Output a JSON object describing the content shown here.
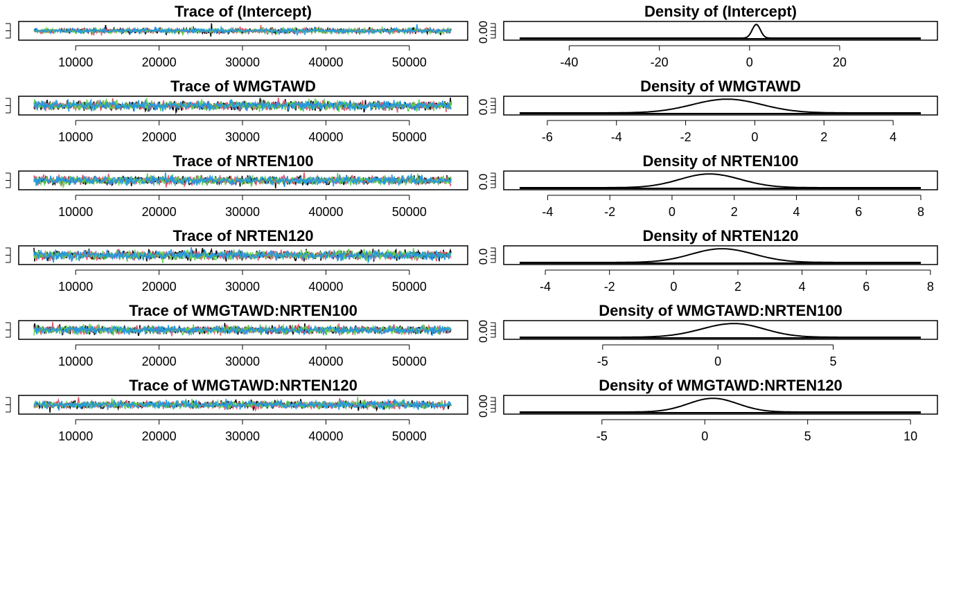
{
  "chart_data": [
    {
      "type": "line",
      "panel": "trace",
      "title": "Trace of (Intercept)",
      "xlim": [
        5000,
        55000
      ],
      "xticks": [
        10000,
        20000,
        30000,
        40000,
        50000
      ],
      "yticks": [],
      "y_tick_label": "",
      "ylim": [
        -6,
        6
      ],
      "center": 0,
      "spread": 0.8,
      "spikes": 2.2,
      "series": [
        {
          "color": "#000000"
        },
        {
          "color": "#DF536B"
        },
        {
          "color": "#61D04F"
        },
        {
          "color": "#2297E6"
        }
      ]
    },
    {
      "type": "line",
      "panel": "density",
      "title": "Density of (Intercept)",
      "xlim": [
        -51,
        38
      ],
      "xticks": [
        -40,
        -20,
        0,
        20
      ],
      "y_tick_label": "0.00",
      "peak_x": 1.5,
      "sd_left": 0.9,
      "sd_right": 0.9,
      "ylim_max": 0.53
    },
    {
      "type": "line",
      "panel": "trace",
      "title": "Trace of WMGTAWD",
      "xlim": [
        5000,
        55000
      ],
      "xticks": [
        10000,
        20000,
        30000,
        40000,
        50000
      ],
      "y_tick_label": "",
      "ylim": [
        -6,
        6
      ],
      "center": 0,
      "spread": 1.6,
      "spikes": 1.5,
      "series": [
        {
          "color": "#000000"
        },
        {
          "color": "#DF536B"
        },
        {
          "color": "#61D04F"
        },
        {
          "color": "#2297E6"
        }
      ]
    },
    {
      "type": "line",
      "panel": "density",
      "title": "Density of WMGTAWD",
      "xlim": [
        -6.8,
        4.8
      ],
      "xticks": [
        -6,
        -4,
        -2,
        0,
        2,
        4
      ],
      "y_tick_label": "0.0",
      "peak_x": -0.8,
      "sd_left": 1.0,
      "sd_right": 1.0,
      "ylim_max": 0.53
    },
    {
      "type": "line",
      "panel": "trace",
      "title": "Trace of NRTEN100",
      "xlim": [
        5000,
        55000
      ],
      "xticks": [
        10000,
        20000,
        30000,
        40000,
        50000
      ],
      "y_tick_label": "",
      "ylim": [
        -6,
        6
      ],
      "center": 0,
      "spread": 1.5,
      "spikes": 1.5,
      "series": [
        {
          "color": "#000000"
        },
        {
          "color": "#DF536B"
        },
        {
          "color": "#61D04F"
        },
        {
          "color": "#2297E6"
        }
      ]
    },
    {
      "type": "line",
      "panel": "density",
      "title": "Density of NRTEN100",
      "xlim": [
        -4.9,
        8.0
      ],
      "xticks": [
        -4,
        -2,
        0,
        2,
        4,
        6,
        8
      ],
      "y_tick_label": "0.0",
      "peak_x": 1.2,
      "sd_left": 0.95,
      "sd_right": 1.0,
      "ylim_max": 0.53
    },
    {
      "type": "line",
      "panel": "trace",
      "title": "Trace of NRTEN120",
      "xlim": [
        5000,
        55000
      ],
      "xticks": [
        10000,
        20000,
        30000,
        40000,
        50000
      ],
      "y_tick_label": "",
      "ylim": [
        -6,
        6
      ],
      "center": 0,
      "spread": 1.6,
      "spikes": 1.6,
      "series": [
        {
          "color": "#000000"
        },
        {
          "color": "#DF536B"
        },
        {
          "color": "#61D04F"
        },
        {
          "color": "#2297E6"
        }
      ]
    },
    {
      "type": "line",
      "panel": "density",
      "title": "Density of NRTEN120",
      "xlim": [
        -4.8,
        7.7
      ],
      "xticks": [
        -4,
        -2,
        0,
        2,
        4,
        6,
        8
      ],
      "y_tick_label": "0.0",
      "peak_x": 1.5,
      "sd_left": 0.95,
      "sd_right": 1.0,
      "ylim_max": 0.53
    },
    {
      "type": "line",
      "panel": "trace",
      "title": "Trace of WMGTAWD:NRTEN100",
      "xlim": [
        5000,
        55000
      ],
      "xticks": [
        10000,
        20000,
        30000,
        40000,
        50000
      ],
      "y_tick_label": "",
      "ylim": [
        -6,
        6
      ],
      "center": 0,
      "spread": 1.4,
      "spikes": 1.5,
      "series": [
        {
          "color": "#000000"
        },
        {
          "color": "#DF536B"
        },
        {
          "color": "#61D04F"
        },
        {
          "color": "#2297E6"
        }
      ]
    },
    {
      "type": "line",
      "panel": "density",
      "title": "Density of WMGTAWD:NRTEN100",
      "xlim": [
        -8.6,
        8.8
      ],
      "xticks": [
        -5,
        0,
        5
      ],
      "y_tick_label": "0.00",
      "peak_x": 0.7,
      "sd_left": 1.4,
      "sd_right": 1.3,
      "ylim_max": 0.53
    },
    {
      "type": "line",
      "panel": "trace",
      "title": "Trace of WMGTAWD:NRTEN120",
      "xlim": [
        5000,
        55000
      ],
      "xticks": [
        10000,
        20000,
        30000,
        40000,
        50000
      ],
      "y_tick_label": "",
      "ylim": [
        -6,
        6
      ],
      "center": 0,
      "spread": 1.3,
      "spikes": 1.6,
      "series": [
        {
          "color": "#000000"
        },
        {
          "color": "#DF536B"
        },
        {
          "color": "#61D04F"
        },
        {
          "color": "#2297E6"
        }
      ]
    },
    {
      "type": "line",
      "panel": "density",
      "title": "Density of WMGTAWD:NRTEN120",
      "xlim": [
        -9.0,
        10.5
      ],
      "xticks": [
        -5,
        0,
        5,
        10
      ],
      "y_tick_label": "0.00",
      "peak_x": 0.4,
      "sd_left": 1.2,
      "sd_right": 1.2,
      "ylim_max": 0.53
    }
  ]
}
